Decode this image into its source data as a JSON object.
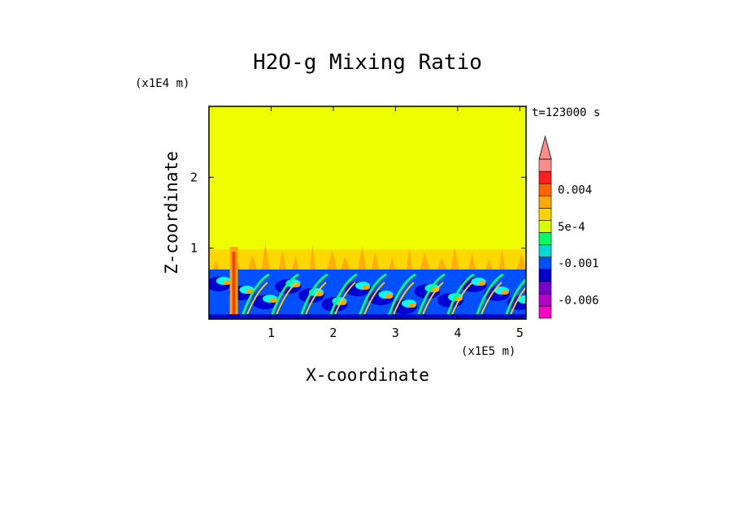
{
  "chart_data": {
    "type": "heatmap",
    "title": "H2O-g Mixing Ratio",
    "xlabel": "X-coordinate",
    "ylabel": "Z-coordinate",
    "x_unit": "(x1E5 m)",
    "y_unit": "(x1E4 m)",
    "time_label": "t=123000 s",
    "xlim": [
      0,
      5.1
    ],
    "ylim": [
      0,
      3.0
    ],
    "x_ticks": [
      1,
      2,
      3,
      4,
      5
    ],
    "y_ticks": [
      1,
      2
    ],
    "layers": [
      {
        "region": "upper",
        "z_range": [
          1.05,
          3.0
        ],
        "level_index": 10
      },
      {
        "region": "transition",
        "z_range": [
          0.7,
          1.05
        ],
        "level_index": 9
      },
      {
        "region": "boundary",
        "z_range": [
          0,
          0.7
        ],
        "level_index": 2
      }
    ],
    "colorbar": {
      "levels": [
        {
          "color": "#ff00c8",
          "label": ""
        },
        {
          "color": "#b400c8",
          "label": "-0.006"
        },
        {
          "color": "#7800c8",
          "label": ""
        },
        {
          "color": "#0000c8",
          "label": ""
        },
        {
          "color": "#0050ff",
          "label": "-0.001"
        },
        {
          "color": "#00d8d8",
          "label": ""
        },
        {
          "color": "#00ff64",
          "label": ""
        },
        {
          "color": "#d8ff00",
          "label": "5e-4"
        },
        {
          "color": "#ffd200",
          "label": ""
        },
        {
          "color": "#ffaa00",
          "label": ""
        },
        {
          "color": "#ff6400",
          "label": "0.004"
        },
        {
          "color": "#ff1e1e",
          "label": ""
        },
        {
          "color": "#ff8c8c",
          "label": ""
        }
      ],
      "extend": "max"
    },
    "grid": false
  },
  "colors": {
    "background": "#eefe00",
    "deep_blue": "#0000d2",
    "blue": "#0050ff",
    "cyan": "#00ffff",
    "green": "#00ff64",
    "orange": "#ffa500",
    "light_orange": "#ffcc00",
    "red": "#ff3c00",
    "frame": "#000000"
  }
}
